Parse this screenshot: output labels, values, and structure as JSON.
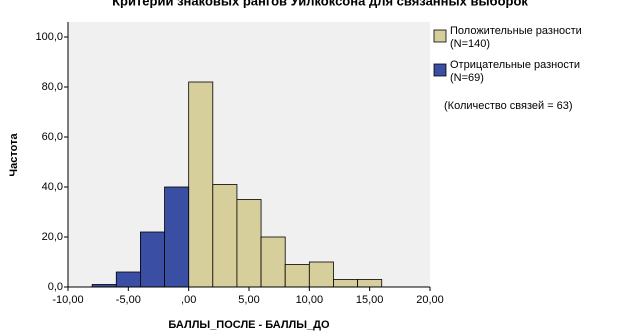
{
  "chart_data": {
    "type": "histogram",
    "title": "Критерий знаковых рангов Уилкоксона для связанных выборок",
    "x_label": "БАЛЛЫ_ПОСЛЕ - БАЛЛЫ_ДО",
    "y_label": "Частота",
    "series": [
      {
        "name": "Положительные разности",
        "n_label": "(N=140)",
        "color": "#d6cf9c",
        "bins": [
          0,
          2,
          4,
          6,
          8,
          10,
          12,
          14,
          16
        ],
        "values": [
          82,
          41,
          35,
          20,
          9,
          10,
          3,
          3
        ]
      },
      {
        "name": "Отрицательные разности",
        "n_label": "(N=69)",
        "color": "#3a4fa3",
        "bins": [
          -8,
          -6,
          -4,
          -2,
          0
        ],
        "values": [
          1,
          6,
          22,
          40
        ]
      }
    ],
    "note": "(Количество связей = 63)",
    "xlim": [
      -10,
      20
    ],
    "xticks": [
      {
        "value": -10,
        "label": "-10,00"
      },
      {
        "value": -5,
        "label": "-5,00"
      },
      {
        "value": 0,
        "label": ",00"
      },
      {
        "value": 5,
        "label": "5,00"
      },
      {
        "value": 10,
        "label": "10,00"
      },
      {
        "value": 15,
        "label": "15,00"
      },
      {
        "value": 20,
        "label": "20,00"
      }
    ],
    "ylim": [
      0,
      106
    ],
    "yticks": [
      {
        "value": 0,
        "label": "0,0"
      },
      {
        "value": 20,
        "label": "20,0"
      },
      {
        "value": 40,
        "label": "40,0"
      },
      {
        "value": 60,
        "label": "60,0"
      },
      {
        "value": 80,
        "label": "80,0"
      },
      {
        "value": 100,
        "label": "100,0"
      }
    ]
  }
}
